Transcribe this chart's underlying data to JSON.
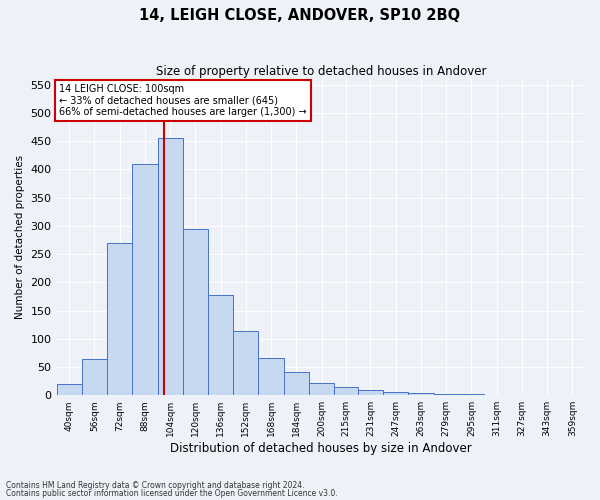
{
  "title": "14, LEIGH CLOSE, ANDOVER, SP10 2BQ",
  "subtitle": "Size of property relative to detached houses in Andover",
  "xlabel": "Distribution of detached houses by size in Andover",
  "ylabel": "Number of detached properties",
  "footnote1": "Contains HM Land Registry data © Crown copyright and database right 2024.",
  "footnote2": "Contains public sector information licensed under the Open Government Licence v3.0.",
  "annotation_title": "14 LEIGH CLOSE: 100sqm",
  "annotation_line2": "← 33% of detached houses are smaller (645)",
  "annotation_line3": "66% of semi-detached houses are larger (1,300) →",
  "bar_color": "#c6d9f0",
  "bar_edge_color": "#4472c4",
  "background_color": "#eef2f8",
  "vline_x": 100,
  "vline_color": "#cc0000",
  "categories": [
    "40sqm",
    "56sqm",
    "72sqm",
    "88sqm",
    "104sqm",
    "120sqm",
    "136sqm",
    "152sqm",
    "168sqm",
    "184sqm",
    "200sqm",
    "215sqm",
    "231sqm",
    "247sqm",
    "263sqm",
    "279sqm",
    "295sqm",
    "311sqm",
    "327sqm",
    "343sqm",
    "359sqm"
  ],
  "bin_edges": [
    32,
    48,
    64,
    80,
    96,
    112,
    128,
    144,
    160,
    176,
    192,
    208,
    223,
    239,
    255,
    271,
    287,
    303,
    319,
    335,
    351,
    367
  ],
  "values": [
    20,
    65,
    270,
    410,
    455,
    295,
    178,
    113,
    66,
    42,
    22,
    14,
    10,
    5,
    4,
    3,
    2,
    1,
    1,
    1,
    1
  ],
  "ylim": [
    0,
    560
  ],
  "yticks": [
    0,
    50,
    100,
    150,
    200,
    250,
    300,
    350,
    400,
    450,
    500,
    550
  ],
  "grid_color": "#ffffff",
  "annotation_box_color": "#cc0000"
}
